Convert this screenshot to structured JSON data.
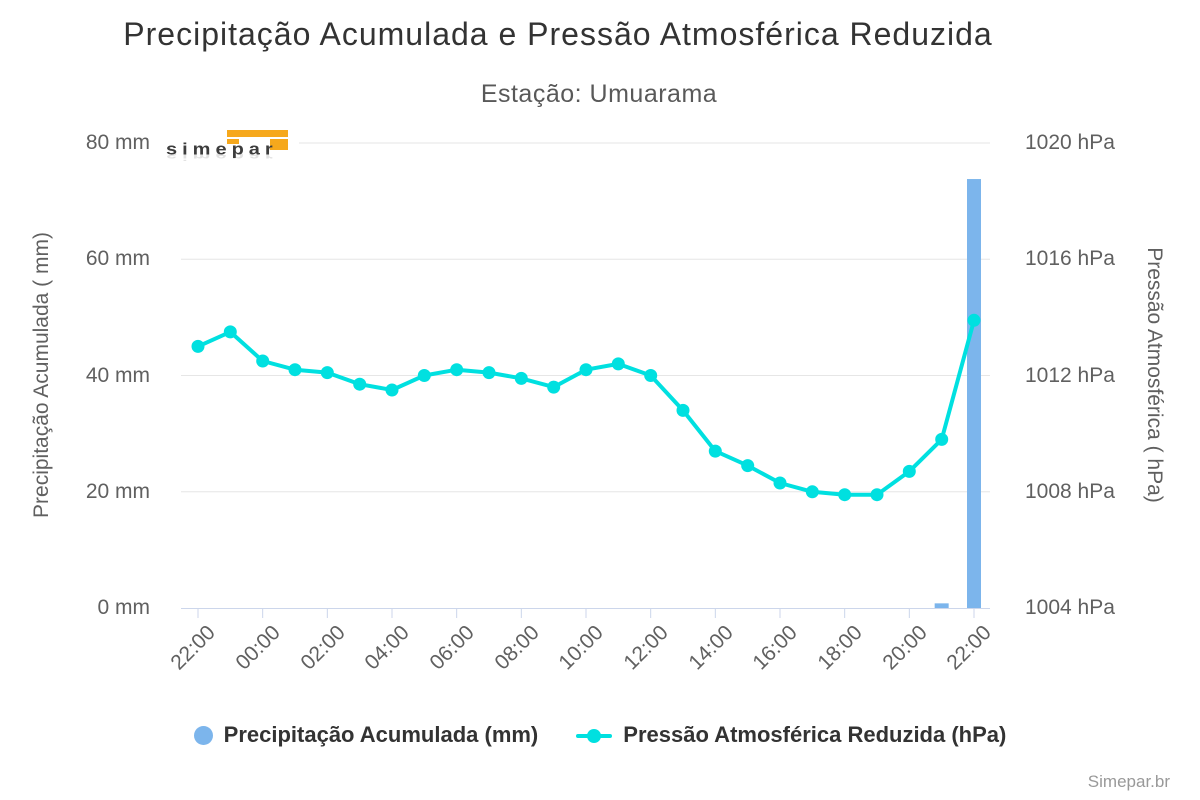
{
  "title": "Precipitação Acumulada e Pressão Atmosférica Reduzida",
  "subtitle": "Estação: Umuarama",
  "credit": "Simepar.br",
  "watermark": {
    "logo_text": "simepar"
  },
  "legend": [
    {
      "label": "Precipitação Acumulada (mm)",
      "marker": "circle",
      "color": "#7cb5ec"
    },
    {
      "label": "Pressão Atmosférica Reduzida (hPa)",
      "marker": "line-circle",
      "color": "#00e0e0"
    }
  ],
  "colors": {
    "precipitation": "#7cb5ec",
    "pressure": "#00e0e0",
    "grid_line": "#e6e6e6",
    "axis_line": "#ccd6eb",
    "title_text": "#333333",
    "subtitle_text": "#595959",
    "label_text": "#606060",
    "credit_text": "#999999",
    "logo_orange": "#f6a81c",
    "logo_gray": "#3d3d3d"
  },
  "chart_data": {
    "type": "bar+line",
    "title": "Precipitação Acumulada e Pressão Atmosférica Reduzida",
    "subtitle": "Estação: Umuarama",
    "categories": [
      "22:00",
      "23:00",
      "00:00",
      "01:00",
      "02:00",
      "03:00",
      "04:00",
      "05:00",
      "06:00",
      "07:00",
      "08:00",
      "09:00",
      "10:00",
      "11:00",
      "12:00",
      "13:00",
      "14:00",
      "15:00",
      "16:00",
      "17:00",
      "18:00",
      "19:00",
      "20:00",
      "21:00",
      "22:00"
    ],
    "x_tick_labels": [
      "22:00",
      "00:00",
      "02:00",
      "04:00",
      "06:00",
      "08:00",
      "10:00",
      "12:00",
      "14:00",
      "16:00",
      "18:00",
      "20:00",
      "22:00"
    ],
    "series": [
      {
        "name": "Precipitação Acumulada (mm)",
        "type": "bar",
        "axis": "left",
        "color": "#7cb5ec",
        "values": [
          0,
          0,
          0,
          0,
          0,
          0,
          0,
          0,
          0,
          0,
          0,
          0,
          0,
          0,
          0,
          0,
          0,
          0,
          0,
          0,
          0,
          0,
          0,
          0.8,
          73.8
        ]
      },
      {
        "name": "Pressão Atmosférica Reduzida (hPa)",
        "type": "line",
        "axis": "right",
        "color": "#00e0e0",
        "values": [
          1013.0,
          1013.5,
          1012.5,
          1012.2,
          1012.1,
          1011.7,
          1011.5,
          1012.0,
          1012.2,
          1012.1,
          1011.9,
          1011.6,
          1012.2,
          1012.4,
          1012.0,
          1010.8,
          1009.4,
          1008.9,
          1008.3,
          1008.0,
          1007.9,
          1007.9,
          1008.7,
          1009.8,
          1013.9
        ]
      }
    ],
    "y_left": {
      "title": "Precipitação Acumulada ( mm)",
      "unit": "mm",
      "min": 0,
      "max": 80,
      "tick_labels": [
        "0 mm",
        "20 mm",
        "40 mm",
        "60 mm",
        "80 mm"
      ]
    },
    "y_right": {
      "title": "Pressão Atmosférica ( hPa)",
      "unit": "hPa",
      "min": 1004,
      "max": 1020,
      "tick_labels": [
        "1004 hPa",
        "1008 hPa",
        "1012 hPa",
        "1016 hPa",
        "1020 hPa"
      ]
    },
    "grid": "on",
    "legend_position": "bottom"
  }
}
